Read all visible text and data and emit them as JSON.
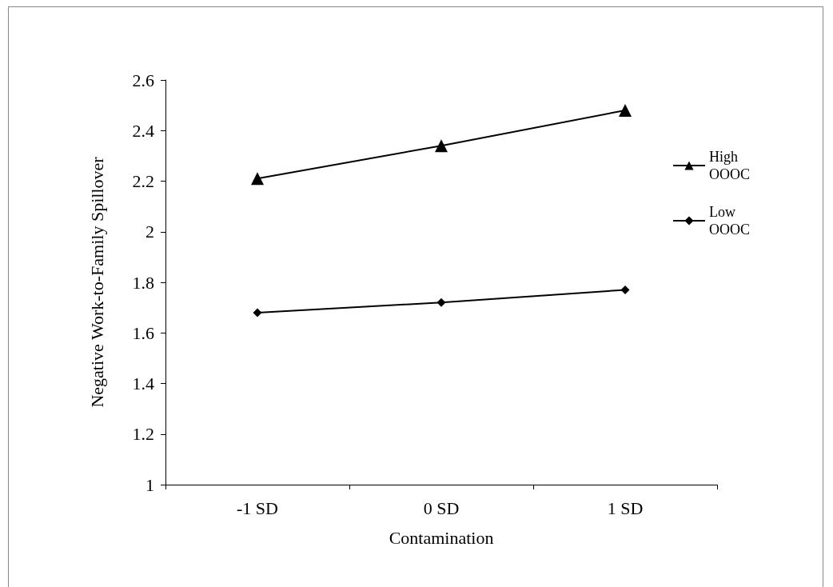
{
  "chart_data": {
    "type": "line",
    "xlabel": "Contamination",
    "ylabel": "Negative Work-to-Family Spillover",
    "categories": [
      "-1 SD",
      "0 SD",
      "1 SD"
    ],
    "series": [
      {
        "name": "High OOOC",
        "color": "#000000",
        "marker": "triangle",
        "values": [
          2.21,
          2.34,
          2.48
        ]
      },
      {
        "name": "Low OOOC",
        "color": "#000000",
        "marker": "diamond",
        "values": [
          1.68,
          1.72,
          1.77
        ]
      }
    ],
    "ylim": [
      1,
      2.6
    ],
    "yticks": [
      1,
      1.2,
      1.4,
      1.6,
      1.8,
      2,
      2.2,
      2.4,
      2.6
    ],
    "grid": false,
    "legend": "right",
    "line_style": "solid"
  }
}
